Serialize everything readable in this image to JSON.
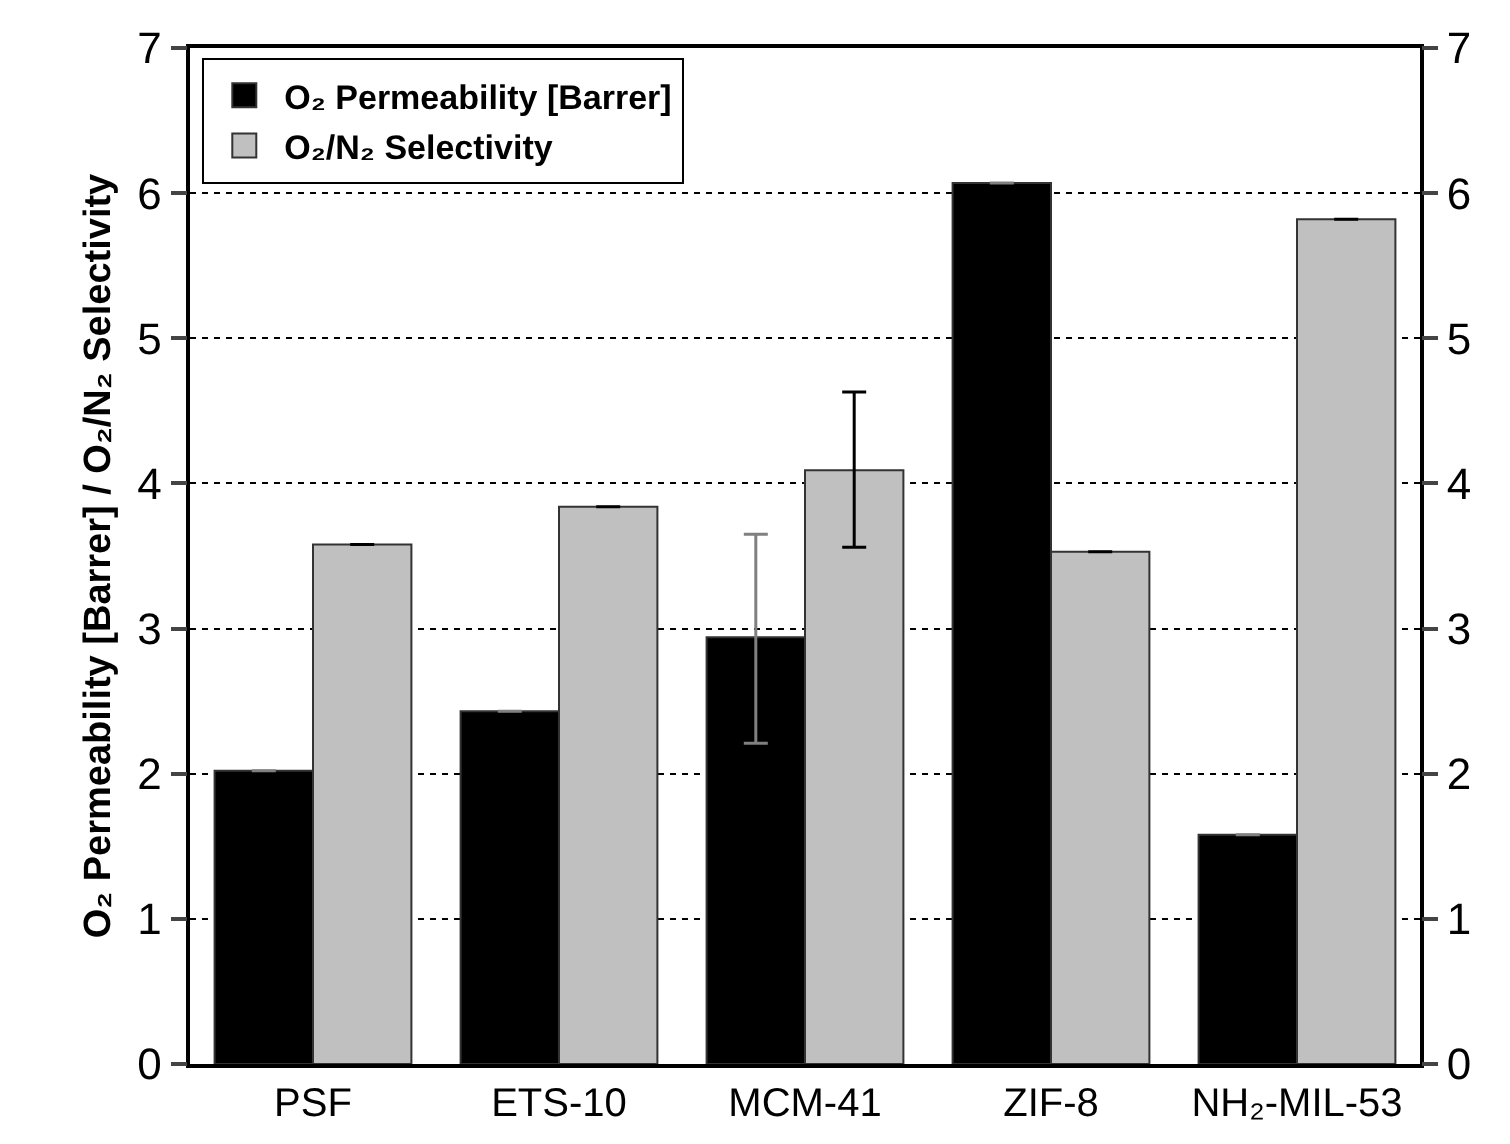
{
  "chart_data": {
    "type": "bar",
    "ylabel": "O₂ Permeability [Barrer] / O₂/N₂ Selectivity",
    "categories": [
      "PSF",
      "ETS-10",
      "MCM-41",
      "ZIF-8",
      "NH₂-MIL-53"
    ],
    "series": [
      {
        "name": "O₂ Permeability [Barrer]",
        "color": "#000000",
        "values": [
          2.02,
          2.43,
          2.94,
          6.07,
          1.58
        ],
        "errors": [
          null,
          null,
          [
            2.21,
            3.65
          ],
          null,
          null
        ]
      },
      {
        "name": "O₂/N₂ Selectivity",
        "color": "#c0c0c0",
        "values": [
          3.58,
          3.84,
          4.09,
          3.53,
          5.82
        ],
        "errors": [
          null,
          null,
          [
            3.56,
            4.63
          ],
          null,
          null
        ]
      }
    ],
    "ylim": [
      0,
      7
    ],
    "yticks": [
      0,
      1,
      2,
      3,
      4,
      5,
      6,
      7
    ],
    "y2lim": [
      0,
      7
    ],
    "y2ticks": [
      0,
      1,
      2,
      3,
      4,
      5,
      6,
      7
    ],
    "grid": "y",
    "legend": "top left"
  }
}
